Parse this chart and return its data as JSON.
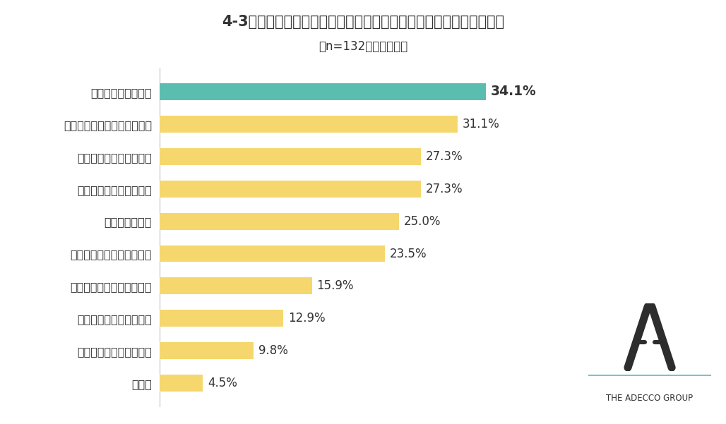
{
  "title": "4-3．現在の勤務先ではキャリアビジョンを実現できないと思う理由",
  "subtitle": "（n=132・複数回答）",
  "categories": [
    "昇進・昇格が難しい",
    "会社や業界が将来性に乏しい",
    "希望する仕事ができない",
    "目標となる人物がいない",
    "職務の幅が狭い",
    "正当な評価を受けられない",
    "教育・研修の機会が少ない",
    "希望する部署に入れない",
    "仕事を任せてもらえない",
    "その他"
  ],
  "values": [
    34.1,
    31.1,
    27.3,
    27.3,
    25.0,
    23.5,
    15.9,
    12.9,
    9.8,
    4.5
  ],
  "bar_colors": [
    "#5bbcb0",
    "#f5d76e",
    "#f5d76e",
    "#f5d76e",
    "#f5d76e",
    "#f5d76e",
    "#f5d76e",
    "#f5d76e",
    "#f5d76e",
    "#f5d76e"
  ],
  "background_color": "#ffffff",
  "title_fontsize": 15,
  "subtitle_fontsize": 12,
  "label_fontsize": 11.5,
  "value_fontsize": 12,
  "bar_height": 0.52,
  "xlim": [
    0,
    44
  ],
  "text_color": "#333333",
  "adecco_color": "#5bbcb0",
  "adecco_text": "THE ADECCO GROUP"
}
